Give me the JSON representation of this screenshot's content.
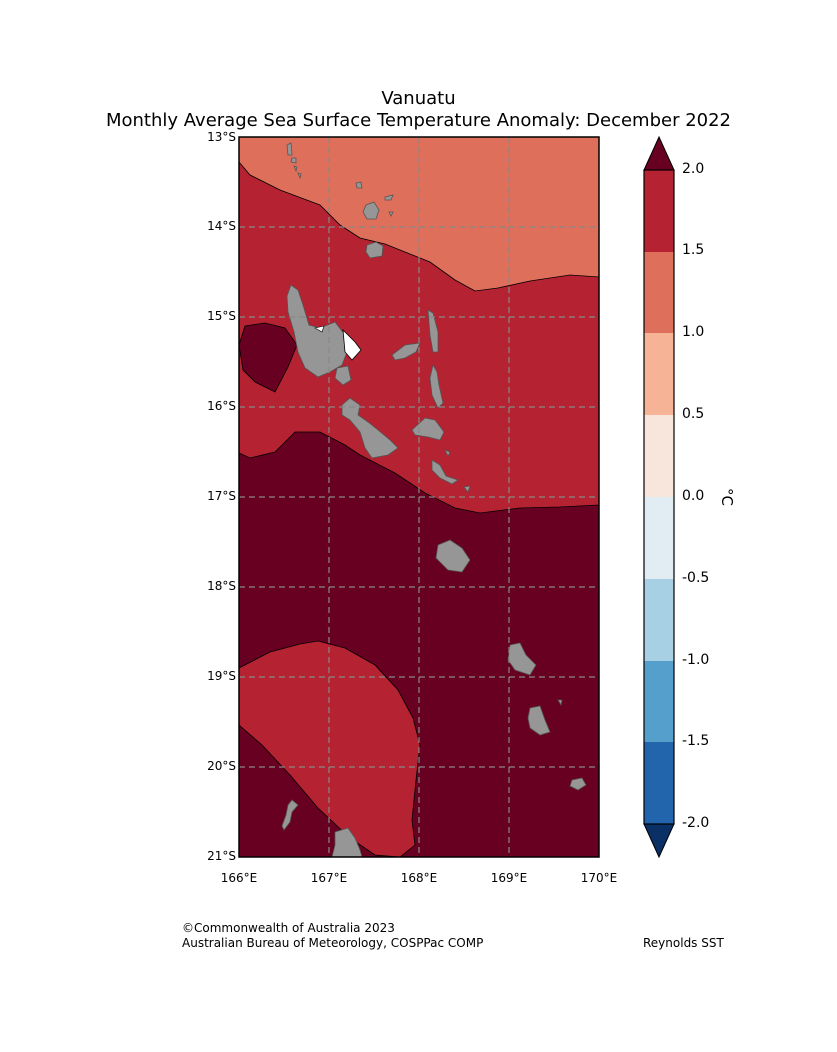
{
  "title": {
    "line1": "Vanuatu",
    "line2": "Monthly Average Sea Surface Temperature Anomaly: December 2022"
  },
  "map": {
    "latitude_labels": [
      "13°S",
      "14°S",
      "15°S",
      "16°S",
      "17°S",
      "18°S",
      "19°S",
      "20°S",
      "21°S"
    ],
    "longitude_labels": [
      "166°E",
      "167°E",
      "168°E",
      "169°E",
      "170°E"
    ],
    "extent": {
      "lon_min": 166,
      "lon_max": 170,
      "lat_min": -21,
      "lat_max": -13
    },
    "anomaly_zones": [
      {
        "range": "1.0 to 1.5",
        "color": "#de6f5a"
      },
      {
        "range": "1.5 to 2.0",
        "color": "#b52231"
      },
      {
        "range": "> 2.0",
        "color": "#670021"
      }
    ],
    "land_color": "#969696"
  },
  "colorbar": {
    "unit": "°C",
    "tick_labels": [
      "2.0",
      "1.5",
      "1.0",
      "0.5",
      "0.0",
      "-0.5",
      "-1.0",
      "-1.5",
      "-2.0"
    ],
    "colors": {
      "over": "#670021",
      "1.5_2.0": "#b52231",
      "1.0_1.5": "#de6f5a",
      "0.5_1.0": "#f6b395",
      "0.0_0.5": "#f8e6dc",
      "-0.5_0.0": "#e2edf3",
      "-1.0_-0.5": "#a7d0e4",
      "-1.5_-1.0": "#549fcb",
      "-2.0_-1.5": "#2365ad",
      "under": "#0a3066"
    }
  },
  "footer": {
    "copyright": "©Commonwealth of Australia 2023",
    "agency": "Australian Bureau of Meteorology, COSPPac COMP",
    "source": "Reynolds SST"
  }
}
